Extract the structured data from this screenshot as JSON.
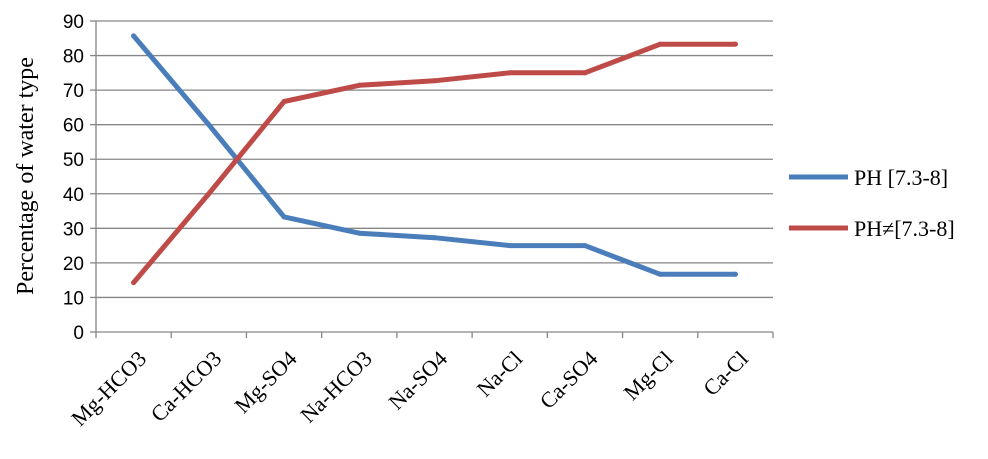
{
  "chart_data": {
    "type": "line",
    "title": "",
    "xlabel": "",
    "ylabel": "Percentage of water type",
    "ylim": [
      0,
      90
    ],
    "yticks": [
      0,
      10,
      20,
      30,
      40,
      50,
      60,
      70,
      80,
      90
    ],
    "grid": true,
    "legend_position": "right",
    "categories": [
      "Mg-HCO3",
      "Ca-HCO3",
      "Mg-SO4",
      "Na-HCO3",
      "Na-SO4",
      "Na-Cl",
      "Ca-SO4",
      "Mg-Cl",
      "Ca-Cl"
    ],
    "series": [
      {
        "name": "PH [7.3-8]",
        "color": "#4a7ebb",
        "values": [
          85.7,
          60,
          33.3,
          28.6,
          27.3,
          25,
          25,
          16.7,
          16.7
        ]
      },
      {
        "name": "PH≠[7.3-8]",
        "color": "#be4b48",
        "values": [
          14.3,
          40,
          66.7,
          71.4,
          72.7,
          75,
          75,
          83.3,
          83.3
        ]
      }
    ]
  }
}
